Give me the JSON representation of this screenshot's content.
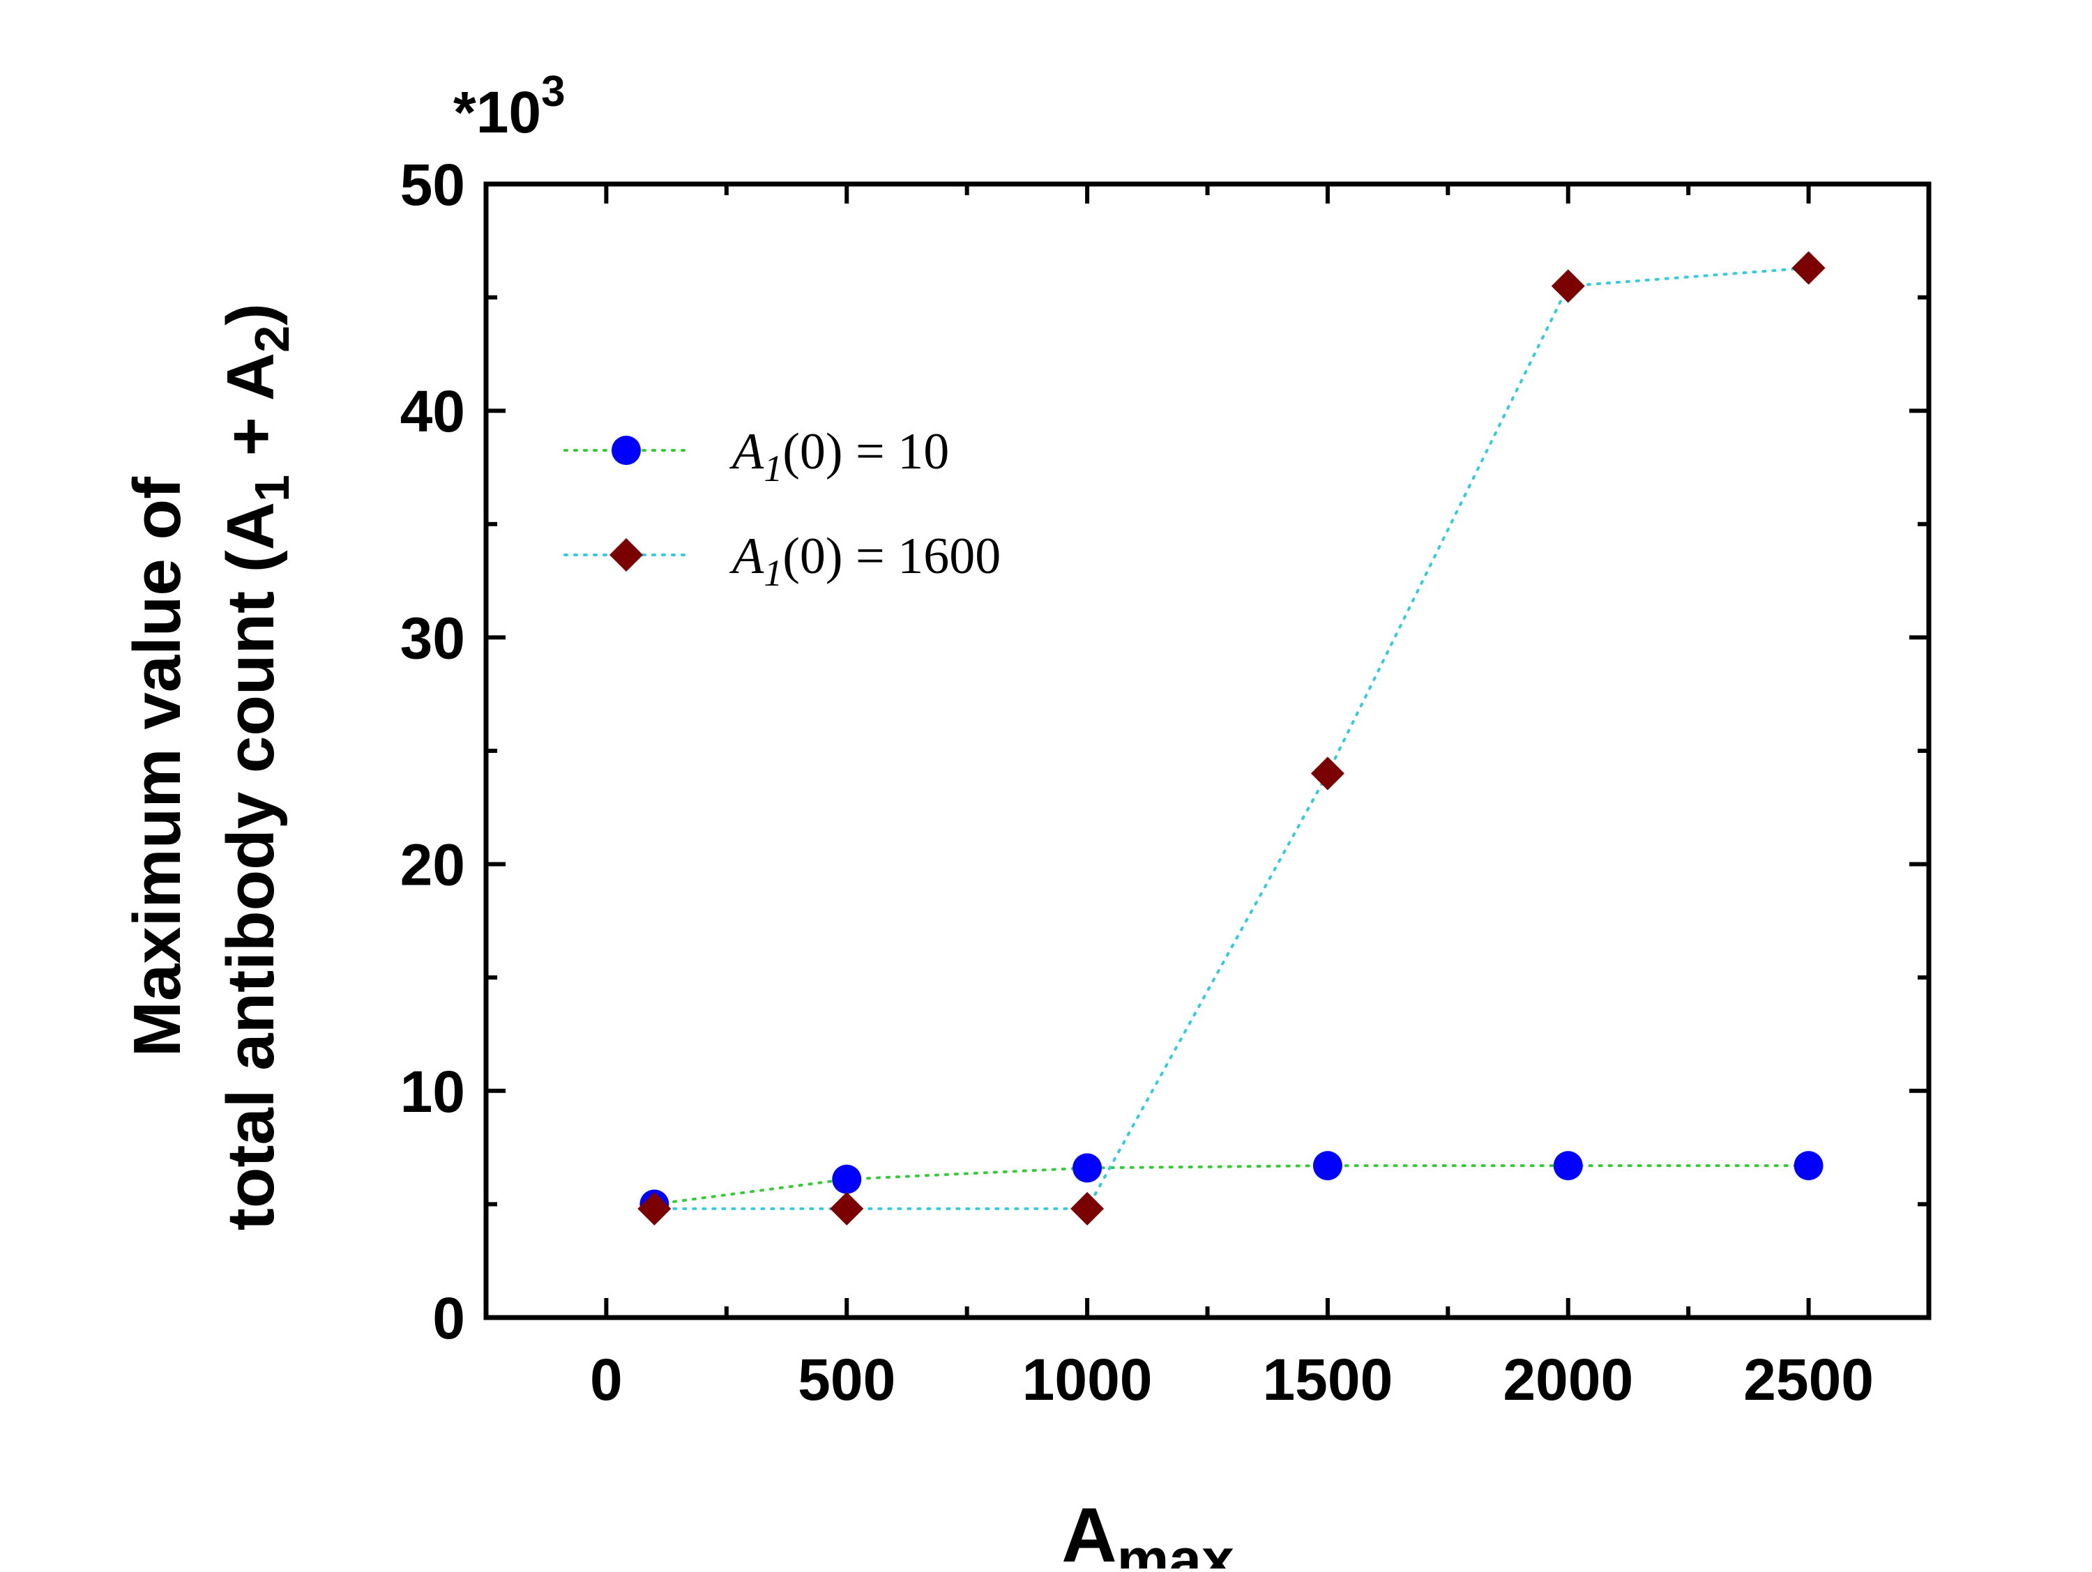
{
  "chart_data": {
    "type": "scatter",
    "multiplier_label": "*10",
    "multiplier_exponent": "3",
    "ylabel": {
      "line1": "Maximum value of",
      "line2_prefix": "total antibody count (A",
      "line2_sub1": "1",
      "line2_mid": " + A",
      "line2_sub2": "2",
      "line2_suffix": ")"
    },
    "xlabel": {
      "main": "A",
      "sub": "max"
    },
    "xlim": [
      -250,
      2750
    ],
    "ylim": [
      0,
      50
    ],
    "x_ticks": [
      0,
      500,
      1000,
      1500,
      2000,
      2500
    ],
    "y_ticks": [
      0,
      10,
      20,
      30,
      40,
      50
    ],
    "grid": false,
    "legend_position": "upper-left",
    "series": [
      {
        "legend_main": "A",
        "legend_sub": "1",
        "legend_rest": "(0) = 10",
        "marker": "circle",
        "color": "#0000ff",
        "line_color": "#33cc33",
        "x": [
          100,
          500,
          1000,
          1500,
          2000,
          2500
        ],
        "y": [
          5.0,
          6.1,
          6.6,
          6.7,
          6.7,
          6.7
        ]
      },
      {
        "legend_main": "A",
        "legend_sub": "1",
        "legend_rest": "(0) = 1600",
        "marker": "diamond",
        "color": "#7b0000",
        "line_color": "#33ccdd",
        "x": [
          100,
          500,
          1000,
          1500,
          2000,
          2500
        ],
        "y": [
          4.8,
          4.8,
          4.8,
          24.0,
          45.5,
          46.3
        ]
      }
    ]
  }
}
